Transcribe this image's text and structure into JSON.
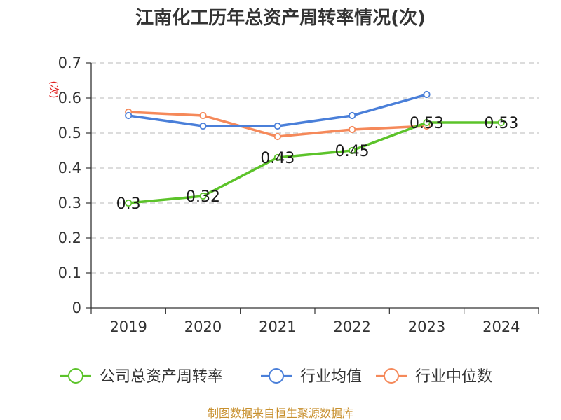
{
  "chart_data": {
    "type": "line",
    "title": "江南化工历年总资产周转率情况(次)",
    "ylabel": "(次)",
    "xlabel": "",
    "categories": [
      "2019",
      "2020",
      "2021",
      "2022",
      "2023",
      "2024"
    ],
    "ylim": [
      0,
      0.7
    ],
    "yticks": [
      "0",
      "0.1",
      "0.2",
      "0.3",
      "0.4",
      "0.5",
      "0.6",
      "0.7"
    ],
    "grid": "horizontal-dashed",
    "legend_position": "bottom",
    "series": [
      {
        "name": "公司总资产周转率",
        "color": "#5cc32a",
        "values": [
          0.3,
          0.32,
          0.43,
          0.45,
          0.53,
          0.53
        ],
        "labels": [
          "0.3",
          "0.32",
          "0.43",
          "0.45",
          "0.53",
          "0.53"
        ]
      },
      {
        "name": "行业均值",
        "color": "#4a7fd9",
        "values": [
          0.55,
          0.52,
          0.52,
          0.55,
          0.61,
          null
        ]
      },
      {
        "name": "行业中位数",
        "color": "#f5895a",
        "values": [
          0.56,
          0.55,
          0.49,
          0.51,
          0.52,
          null
        ]
      }
    ]
  },
  "source": "制图数据来自恒生聚源数据库"
}
